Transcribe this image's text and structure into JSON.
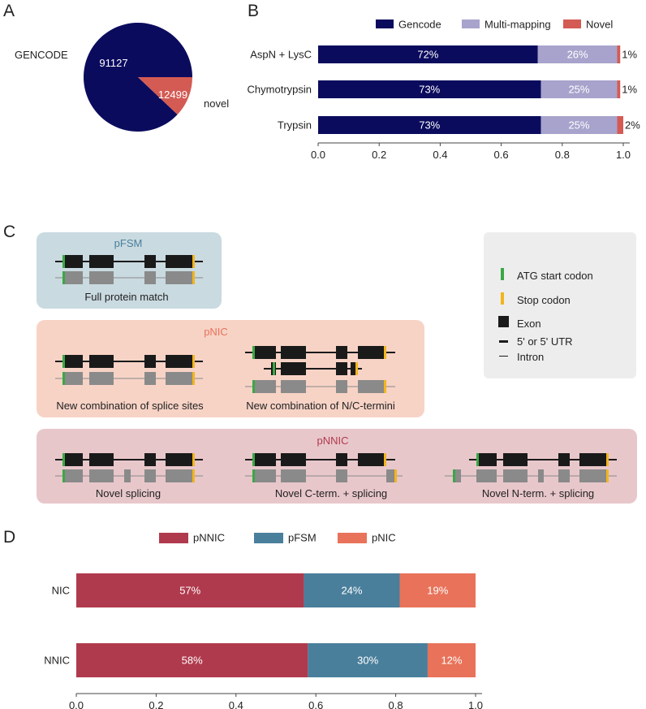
{
  "panel_labels": [
    "A",
    "B",
    "C",
    "D"
  ],
  "colors": {
    "gencode": "#0b0b5e",
    "multi": "#a7a3cc",
    "novel_b": "#d35b54",
    "pie_gencode": "#0b0b5e",
    "pie_novel": "#d35b54",
    "pnnic": "#b03a4d",
    "pfsm": "#4a7f9c",
    "pnic": "#e8735a",
    "atg": "#3aa845",
    "stop": "#f2b51c",
    "exon_dark": "#1a1a1a",
    "exon_gray": "#8a8a8a",
    "pfsm_bg": "#c9dae0",
    "pnic_bg": "#f7d3c6",
    "pnnic_bg": "#e8c7cb",
    "legend_bg": "#ededed",
    "pfsm_title": "#4a7f9c",
    "pnic_title": "#e8735a",
    "pnnic_title": "#b03a4d"
  },
  "chart_data": [
    {
      "id": "A",
      "type": "pie",
      "labels": [
        "GENCODE",
        "novel"
      ],
      "values": [
        91127,
        12499
      ],
      "value_labels": [
        "91127",
        "12499"
      ]
    },
    {
      "id": "B",
      "type": "bar",
      "orientation": "horizontal",
      "stacked": true,
      "categories": [
        "AspN + LysC",
        "Chymotrypsin",
        "Trypsin"
      ],
      "series": [
        {
          "name": "Gencode",
          "values": [
            0.72,
            0.73,
            0.73
          ],
          "labels": [
            "72%",
            "73%",
            "73%"
          ]
        },
        {
          "name": "Multi-mapping",
          "values": [
            0.26,
            0.25,
            0.25
          ],
          "labels": [
            "26%",
            "25%",
            "25%"
          ]
        },
        {
          "name": "Novel",
          "values": [
            0.01,
            0.01,
            0.02
          ],
          "labels": [
            "1%",
            "1%",
            "2%"
          ]
        }
      ],
      "xlim": [
        0,
        1.0
      ],
      "xticks": [
        "0.0",
        "0.2",
        "0.4",
        "0.6",
        "0.8",
        "1.0"
      ],
      "legend": "top"
    },
    {
      "id": "D",
      "type": "bar",
      "orientation": "horizontal",
      "stacked": true,
      "categories": [
        "NIC",
        "NNIC"
      ],
      "series": [
        {
          "name": "pNNIC",
          "values": [
            0.57,
            0.58
          ],
          "labels": [
            "57%",
            "58%"
          ]
        },
        {
          "name": "pFSM",
          "values": [
            0.24,
            0.3
          ],
          "labels": [
            "24%",
            "30%"
          ]
        },
        {
          "name": "pNIC",
          "values": [
            0.19,
            0.12
          ],
          "labels": [
            "19%",
            "12%"
          ]
        }
      ],
      "xlim": [
        0,
        1.0
      ],
      "xticks": [
        "0.0",
        "0.2",
        "0.4",
        "0.6",
        "0.8",
        "1.0"
      ],
      "legend": "top"
    }
  ],
  "panel_c": {
    "pfsm_title": "pFSM",
    "pfsm_caption": "Full protein match",
    "pnic_title": "pNIC",
    "pnic_caption_1": "New combination of splice sites",
    "pnic_caption_2": "New combination of N/C-termini",
    "pnnic_title": "pNNIC",
    "pnnic_caption_1": "Novel splicing",
    "pnnic_caption_2": "Novel C-term. + splicing",
    "pnnic_caption_3": "Novel N-term. + splicing",
    "legend": {
      "atg": "ATG start codon",
      "stop": "Stop codon",
      "exon": "Exon",
      "utr": "5' or 5' UTR",
      "intron": "Intron"
    }
  }
}
